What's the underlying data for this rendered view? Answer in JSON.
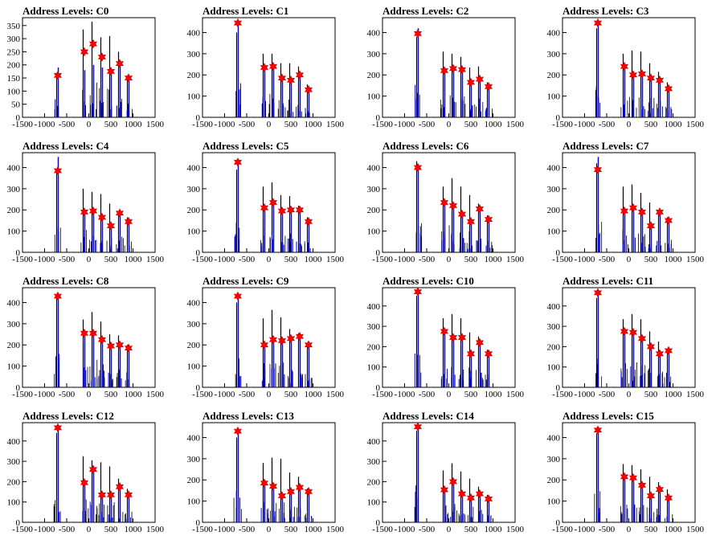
{
  "chart_data": [
    {
      "type": "bar",
      "title": "Address Levels: C0",
      "xlim": [
        -1500,
        1500
      ],
      "ylim": [
        0,
        380
      ],
      "yticks": [
        0,
        50,
        100,
        150,
        200,
        250,
        300,
        350
      ],
      "xticks": [
        -1500,
        -1000,
        -500,
        0,
        500,
        1000,
        1500
      ],
      "peaks": [
        {
          "x": -700,
          "black": 170,
          "blue": 190,
          "marker": 160
        },
        {
          "x": -100,
          "black": 335,
          "blue": 180,
          "marker": 250
        },
        {
          "x": 100,
          "black": 365,
          "blue": 200,
          "marker": 280
        },
        {
          "x": 300,
          "black": 305,
          "blue": 190,
          "marker": 230
        },
        {
          "x": 500,
          "black": 310,
          "blue": 180,
          "marker": 175
        },
        {
          "x": 700,
          "black": 250,
          "blue": 200,
          "marker": 205
        },
        {
          "x": 900,
          "black": 160,
          "blue": 150,
          "marker": 150
        }
      ]
    },
    {
      "type": "bar",
      "title": "Address Levels: C1",
      "xlim": [
        -1500,
        1500
      ],
      "ylim": [
        0,
        470
      ],
      "yticks": [
        0,
        100,
        200,
        300,
        400
      ],
      "xticks": [
        -1500,
        -1000,
        -500,
        0,
        500,
        1000,
        1500
      ],
      "peaks": [
        {
          "x": -700,
          "black": 400,
          "blue": 450,
          "marker": 445
        },
        {
          "x": -100,
          "black": 300,
          "blue": 240,
          "marker": 235
        },
        {
          "x": 100,
          "black": 300,
          "blue": 245,
          "marker": 240
        },
        {
          "x": 300,
          "black": 255,
          "blue": 185,
          "marker": 185
        },
        {
          "x": 500,
          "black": 255,
          "blue": 180,
          "marker": 175
        },
        {
          "x": 700,
          "black": 240,
          "blue": 200,
          "marker": 200
        },
        {
          "x": 900,
          "black": 155,
          "blue": 135,
          "marker": 130
        }
      ]
    },
    {
      "type": "bar",
      "title": "Address Levels: C2",
      "xlim": [
        -1500,
        1500
      ],
      "ylim": [
        0,
        470
      ],
      "yticks": [
        0,
        100,
        200,
        300,
        400
      ],
      "xticks": [
        -1500,
        -1000,
        -500,
        0,
        500,
        1000,
        1500
      ],
      "peaks": [
        {
          "x": -700,
          "black": 380,
          "blue": 420,
          "marker": 395
        },
        {
          "x": -100,
          "black": 310,
          "blue": 225,
          "marker": 220
        },
        {
          "x": 100,
          "black": 300,
          "blue": 235,
          "marker": 230
        },
        {
          "x": 300,
          "black": 285,
          "blue": 230,
          "marker": 225
        },
        {
          "x": 500,
          "black": 235,
          "blue": 170,
          "marker": 165
        },
        {
          "x": 700,
          "black": 240,
          "blue": 185,
          "marker": 180
        },
        {
          "x": 900,
          "black": 165,
          "blue": 150,
          "marker": 145
        }
      ]
    },
    {
      "type": "bar",
      "title": "Address Levels: C3",
      "xlim": [
        -1500,
        1500
      ],
      "ylim": [
        0,
        470
      ],
      "yticks": [
        0,
        100,
        200,
        300,
        400
      ],
      "xticks": [
        -1500,
        -1000,
        -500,
        0,
        500,
        1000,
        1500
      ],
      "peaks": [
        {
          "x": -700,
          "black": 420,
          "blue": 450,
          "marker": 445
        },
        {
          "x": -100,
          "black": 300,
          "blue": 245,
          "marker": 240
        },
        {
          "x": 100,
          "black": 315,
          "blue": 205,
          "marker": 200
        },
        {
          "x": 300,
          "black": 310,
          "blue": 210,
          "marker": 205
        },
        {
          "x": 500,
          "black": 255,
          "blue": 190,
          "marker": 185
        },
        {
          "x": 700,
          "black": 215,
          "blue": 180,
          "marker": 175
        },
        {
          "x": 900,
          "black": 165,
          "blue": 140,
          "marker": 135
        }
      ]
    },
    {
      "type": "bar",
      "title": "Address Levels: C4",
      "xlim": [
        -1500,
        1500
      ],
      "ylim": [
        0,
        470
      ],
      "yticks": [
        0,
        100,
        200,
        300,
        400
      ],
      "xticks": [
        -1500,
        -1000,
        -500,
        0,
        500,
        1000,
        1500
      ],
      "peaks": [
        {
          "x": -700,
          "black": 380,
          "blue": 450,
          "marker": 385
        },
        {
          "x": -100,
          "black": 300,
          "blue": 200,
          "marker": 190
        },
        {
          "x": 100,
          "black": 285,
          "blue": 200,
          "marker": 195
        },
        {
          "x": 300,
          "black": 275,
          "blue": 170,
          "marker": 165
        },
        {
          "x": 500,
          "black": 230,
          "blue": 130,
          "marker": 125
        },
        {
          "x": 700,
          "black": 195,
          "blue": 185,
          "marker": 185
        },
        {
          "x": 900,
          "black": 165,
          "blue": 150,
          "marker": 145
        }
      ]
    },
    {
      "type": "bar",
      "title": "Address Levels: C5",
      "xlim": [
        -1500,
        1500
      ],
      "ylim": [
        0,
        470
      ],
      "yticks": [
        0,
        100,
        200,
        300,
        400
      ],
      "xticks": [
        -1500,
        -1000,
        -500,
        0,
        500,
        1000,
        1500
      ],
      "peaks": [
        {
          "x": -700,
          "black": 390,
          "blue": 430,
          "marker": 425
        },
        {
          "x": -100,
          "black": 310,
          "blue": 215,
          "marker": 210
        },
        {
          "x": 100,
          "black": 330,
          "blue": 240,
          "marker": 235
        },
        {
          "x": 300,
          "black": 270,
          "blue": 200,
          "marker": 195
        },
        {
          "x": 500,
          "black": 265,
          "blue": 205,
          "marker": 200
        },
        {
          "x": 700,
          "black": 220,
          "blue": 200,
          "marker": 200
        },
        {
          "x": 900,
          "black": 165,
          "blue": 150,
          "marker": 145
        }
      ]
    },
    {
      "type": "bar",
      "title": "Address Levels: C6",
      "xlim": [
        -1500,
        1500
      ],
      "ylim": [
        0,
        470
      ],
      "yticks": [
        0,
        100,
        200,
        300,
        400
      ],
      "xticks": [
        -1500,
        -1000,
        -500,
        0,
        500,
        1000,
        1500
      ],
      "peaks": [
        {
          "x": -700,
          "black": 430,
          "blue": 400,
          "marker": 400
        },
        {
          "x": -100,
          "black": 310,
          "blue": 240,
          "marker": 235
        },
        {
          "x": 100,
          "black": 350,
          "blue": 225,
          "marker": 220
        },
        {
          "x": 300,
          "black": 310,
          "blue": 185,
          "marker": 180
        },
        {
          "x": 500,
          "black": 270,
          "blue": 150,
          "marker": 145
        },
        {
          "x": 700,
          "black": 230,
          "blue": 210,
          "marker": 205
        },
        {
          "x": 900,
          "black": 175,
          "blue": 160,
          "marker": 155
        }
      ]
    },
    {
      "type": "bar",
      "title": "Address Levels: C7",
      "xlim": [
        -1500,
        1500
      ],
      "ylim": [
        0,
        470
      ],
      "yticks": [
        0,
        100,
        200,
        300,
        400
      ],
      "xticks": [
        -1500,
        -1000,
        -500,
        0,
        500,
        1000,
        1500
      ],
      "peaks": [
        {
          "x": -700,
          "black": 420,
          "blue": 450,
          "marker": 390
        },
        {
          "x": -100,
          "black": 310,
          "blue": 200,
          "marker": 195
        },
        {
          "x": 100,
          "black": 320,
          "blue": 215,
          "marker": 210
        },
        {
          "x": 300,
          "black": 280,
          "blue": 195,
          "marker": 190
        },
        {
          "x": 500,
          "black": 235,
          "blue": 130,
          "marker": 125
        },
        {
          "x": 700,
          "black": 200,
          "blue": 195,
          "marker": 190
        },
        {
          "x": 900,
          "black": 165,
          "blue": 155,
          "marker": 150
        }
      ]
    },
    {
      "type": "bar",
      "title": "Address Levels: C8",
      "xlim": [
        -1500,
        1500
      ],
      "ylim": [
        0,
        470
      ],
      "yticks": [
        0,
        100,
        200,
        300,
        400
      ],
      "xticks": [
        -1500,
        -1000,
        -500,
        0,
        500,
        1000,
        1500
      ],
      "peaks": [
        {
          "x": -700,
          "black": 420,
          "blue": 435,
          "marker": 430
        },
        {
          "x": -100,
          "black": 320,
          "blue": 260,
          "marker": 255
        },
        {
          "x": 100,
          "black": 355,
          "blue": 260,
          "marker": 255
        },
        {
          "x": 300,
          "black": 310,
          "blue": 230,
          "marker": 225
        },
        {
          "x": 500,
          "black": 250,
          "blue": 200,
          "marker": 195
        },
        {
          "x": 700,
          "black": 245,
          "blue": 205,
          "marker": 200
        },
        {
          "x": 900,
          "black": 200,
          "blue": 185,
          "marker": 185
        }
      ]
    },
    {
      "type": "bar",
      "title": "Address Levels: C9",
      "xlim": [
        -1500,
        1500
      ],
      "ylim": [
        0,
        470
      ],
      "yticks": [
        0,
        100,
        200,
        300,
        400
      ],
      "xticks": [
        -1500,
        -1000,
        -500,
        0,
        500,
        1000,
        1500
      ],
      "peaks": [
        {
          "x": -700,
          "black": 400,
          "blue": 435,
          "marker": 430
        },
        {
          "x": -100,
          "black": 325,
          "blue": 205,
          "marker": 200
        },
        {
          "x": 100,
          "black": 365,
          "blue": 230,
          "marker": 225
        },
        {
          "x": 300,
          "black": 330,
          "blue": 225,
          "marker": 220
        },
        {
          "x": 500,
          "black": 275,
          "blue": 235,
          "marker": 230
        },
        {
          "x": 700,
          "black": 255,
          "blue": 245,
          "marker": 240
        },
        {
          "x": 900,
          "black": 200,
          "blue": 205,
          "marker": 200
        }
      ]
    },
    {
      "type": "bar",
      "title": "Address Levels: C10",
      "xlim": [
        -1500,
        1500
      ],
      "ylim": [
        0,
        490
      ],
      "yticks": [
        0,
        100,
        200,
        300,
        400
      ],
      "xticks": [
        -1500,
        -1000,
        -500,
        0,
        500,
        1000,
        1500
      ],
      "peaks": [
        {
          "x": -700,
          "black": 450,
          "blue": 475,
          "marker": 470
        },
        {
          "x": -100,
          "black": 340,
          "blue": 280,
          "marker": 275
        },
        {
          "x": 100,
          "black": 360,
          "blue": 250,
          "marker": 245
        },
        {
          "x": 300,
          "black": 340,
          "blue": 250,
          "marker": 245
        },
        {
          "x": 500,
          "black": 270,
          "blue": 175,
          "marker": 165
        },
        {
          "x": 700,
          "black": 250,
          "blue": 225,
          "marker": 220
        },
        {
          "x": 900,
          "black": 185,
          "blue": 170,
          "marker": 165
        }
      ]
    },
    {
      "type": "bar",
      "title": "Address Levels: C11",
      "xlim": [
        -1500,
        1500
      ],
      "ylim": [
        0,
        490
      ],
      "yticks": [
        0,
        100,
        200,
        300,
        400
      ],
      "xticks": [
        -1500,
        -1000,
        -500,
        0,
        500,
        1000,
        1500
      ],
      "peaks": [
        {
          "x": -700,
          "black": 440,
          "blue": 475,
          "marker": 465
        },
        {
          "x": -100,
          "black": 335,
          "blue": 280,
          "marker": 275
        },
        {
          "x": 100,
          "black": 360,
          "blue": 275,
          "marker": 270
        },
        {
          "x": 300,
          "black": 335,
          "blue": 245,
          "marker": 240
        },
        {
          "x": 500,
          "black": 275,
          "blue": 205,
          "marker": 200
        },
        {
          "x": 700,
          "black": 225,
          "blue": 170,
          "marker": 165
        },
        {
          "x": 900,
          "black": 190,
          "blue": 185,
          "marker": 180
        }
      ]
    },
    {
      "type": "bar",
      "title": "Address Levels: C12",
      "xlim": [
        -1500,
        1500
      ],
      "ylim": [
        0,
        490
      ],
      "yticks": [
        0,
        100,
        200,
        300,
        400
      ],
      "xticks": [
        -1500,
        -1000,
        -500,
        0,
        500,
        1000,
        1500
      ],
      "peaks": [
        {
          "x": -700,
          "black": 440,
          "blue": 475,
          "marker": 465
        },
        {
          "x": -100,
          "black": 325,
          "blue": 200,
          "marker": 195
        },
        {
          "x": 100,
          "black": 305,
          "blue": 265,
          "marker": 260
        },
        {
          "x": 300,
          "black": 295,
          "blue": 140,
          "marker": 135
        },
        {
          "x": 500,
          "black": 275,
          "blue": 140,
          "marker": 135
        },
        {
          "x": 700,
          "black": 215,
          "blue": 180,
          "marker": 175
        },
        {
          "x": 900,
          "black": 165,
          "blue": 140,
          "marker": 135
        }
      ]
    },
    {
      "type": "bar",
      "title": "Address Levels: C13",
      "xlim": [
        -1500,
        1500
      ],
      "ylim": [
        0,
        470
      ],
      "yticks": [
        0,
        100,
        200,
        300,
        400
      ],
      "xticks": [
        -1500,
        -1000,
        -500,
        0,
        500,
        1000,
        1500
      ],
      "peaks": [
        {
          "x": -700,
          "black": 400,
          "blue": 435,
          "marker": 430
        },
        {
          "x": -100,
          "black": 280,
          "blue": 190,
          "marker": 185
        },
        {
          "x": 100,
          "black": 305,
          "blue": 175,
          "marker": 170
        },
        {
          "x": 300,
          "black": 300,
          "blue": 130,
          "marker": 125
        },
        {
          "x": 500,
          "black": 235,
          "blue": 150,
          "marker": 145
        },
        {
          "x": 700,
          "black": 215,
          "blue": 170,
          "marker": 165
        },
        {
          "x": 900,
          "black": 160,
          "blue": 150,
          "marker": 145
        }
      ]
    },
    {
      "type": "bar",
      "title": "Address Levels: C14",
      "xlim": [
        -1500,
        1500
      ],
      "ylim": [
        0,
        490
      ],
      "yticks": [
        0,
        100,
        200,
        300,
        400
      ],
      "xticks": [
        -1500,
        -1000,
        -500,
        0,
        500,
        1000,
        1500
      ],
      "peaks": [
        {
          "x": -700,
          "black": 450,
          "blue": 475,
          "marker": 470
        },
        {
          "x": -100,
          "black": 255,
          "blue": 165,
          "marker": 160
        },
        {
          "x": 100,
          "black": 290,
          "blue": 205,
          "marker": 200
        },
        {
          "x": 300,
          "black": 250,
          "blue": 145,
          "marker": 140
        },
        {
          "x": 500,
          "black": 215,
          "blue": 125,
          "marker": 120
        },
        {
          "x": 700,
          "black": 175,
          "blue": 145,
          "marker": 140
        },
        {
          "x": 900,
          "black": 135,
          "blue": 120,
          "marker": 115
        }
      ]
    },
    {
      "type": "bar",
      "title": "Address Levels: C15",
      "xlim": [
        -1500,
        1500
      ],
      "ylim": [
        0,
        470
      ],
      "yticks": [
        0,
        100,
        200,
        300,
        400
      ],
      "xticks": [
        -1500,
        -1000,
        -500,
        0,
        500,
        1000,
        1500
      ],
      "peaks": [
        {
          "x": -700,
          "black": 420,
          "blue": 440,
          "marker": 435
        },
        {
          "x": -100,
          "black": 275,
          "blue": 220,
          "marker": 215
        },
        {
          "x": 100,
          "black": 270,
          "blue": 215,
          "marker": 210
        },
        {
          "x": 300,
          "black": 250,
          "blue": 180,
          "marker": 175
        },
        {
          "x": 500,
          "black": 215,
          "blue": 130,
          "marker": 125
        },
        {
          "x": 700,
          "black": 190,
          "blue": 160,
          "marker": 155
        },
        {
          "x": 900,
          "black": 155,
          "blue": 120,
          "marker": 115
        }
      ]
    }
  ],
  "colors": {
    "black_series": "#000000",
    "blue_series": "#0000ff",
    "marker": "#ff0000",
    "marker_edge": "#cc0000",
    "axis": "#000000"
  }
}
